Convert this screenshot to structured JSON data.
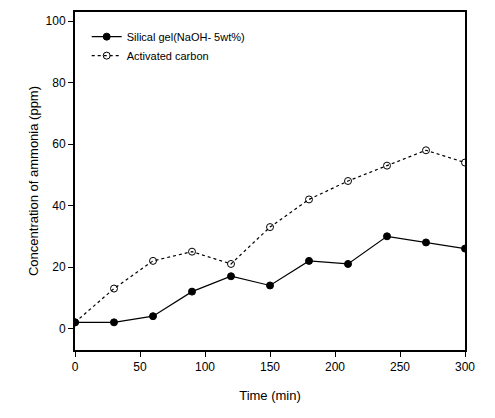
{
  "chart_data": {
    "type": "line",
    "x_label": "Time (min)",
    "y_label": "Concentration of ammonia (ppm)",
    "x": [
      0,
      30,
      60,
      90,
      120,
      150,
      180,
      210,
      240,
      270,
      300
    ],
    "series": [
      {
        "name": "Silical gel(NaOH- 5wt%)",
        "color": "#000000",
        "marker": "filled_circle",
        "line_style": "solid",
        "values": [
          2,
          2,
          4,
          12,
          17,
          14,
          22,
          21,
          30,
          28,
          26
        ]
      },
      {
        "name": "Activated carbon",
        "color": "#000000",
        "marker": "open_circle",
        "line_style": "dotted",
        "values": [
          2,
          13,
          22,
          25,
          21,
          33,
          42,
          48,
          53,
          58,
          54
        ]
      }
    ],
    "xlim": [
      0,
      300
    ],
    "xticks": [
      0,
      50,
      100,
      150,
      200,
      250,
      300
    ],
    "ylim": [
      -7,
      103
    ],
    "yticks": [
      0,
      20,
      40,
      60,
      80,
      100
    ],
    "grid": false,
    "legend": "upper left"
  }
}
